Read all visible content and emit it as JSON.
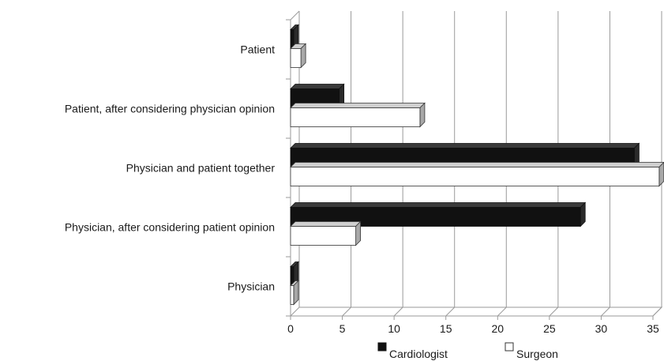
{
  "chart_data": {
    "type": "bar",
    "orientation": "horizontal",
    "style": "3d",
    "title": "",
    "xlabel": "",
    "ylabel": "",
    "categories": [
      "Patient",
      "Patient, after considering physician opinion",
      "Physician and patient together",
      "Physician, after considering patient opinion",
      "Physician"
    ],
    "series": [
      {
        "name": "Cardiologist",
        "color": "#111111",
        "values": [
          0.3,
          4.7,
          33.2,
          28.0,
          0.3
        ]
      },
      {
        "name": "Surgeon",
        "color": "#ffffff",
        "values": [
          1.0,
          12.5,
          35.6,
          6.3,
          0.3
        ]
      }
    ],
    "xlim": [
      0,
      35
    ],
    "xticks": [
      "0",
      "5",
      "10",
      "15",
      "20",
      "25",
      "30",
      "35"
    ],
    "grid": true,
    "legend": "bottom"
  }
}
